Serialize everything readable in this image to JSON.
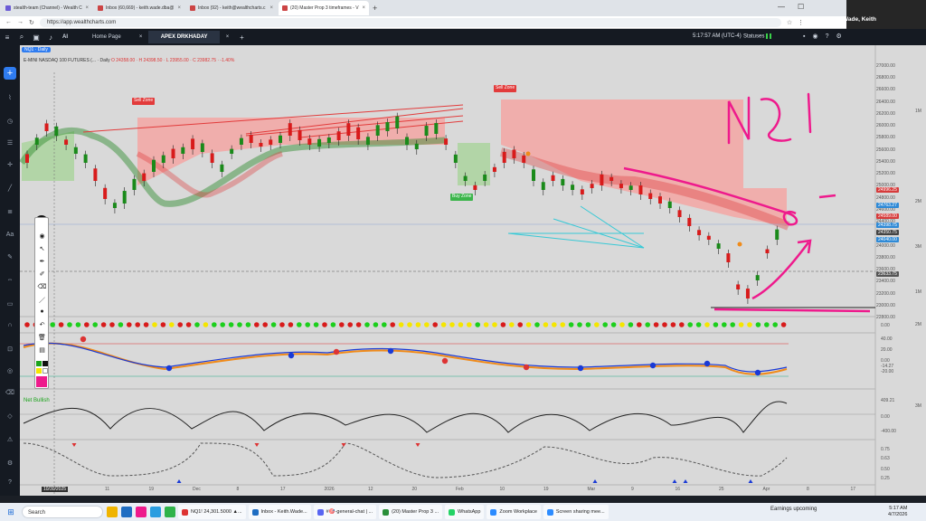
{
  "browser": {
    "tabs": [
      {
        "label": "stealth-team (Channel) - Wealth C",
        "active": false,
        "color": "#6a5bd6"
      },
      {
        "label": "Inbox (60,669) - keith.wade.dba@",
        "active": false,
        "color": "#d33"
      },
      {
        "label": "Inbox (92) - keith@wealthcharts.c",
        "active": false,
        "color": "#d33"
      },
      {
        "label": "(20) Master Prop 3 timeframes - V",
        "active": true,
        "color": "#d33"
      }
    ],
    "url": "https://app.wealthcharts.com",
    "new_tab_label": "+"
  },
  "zoom": {
    "participant_name": "Wade, Keith"
  },
  "app": {
    "tabs": [
      "Home Page",
      "APEX DRKHADAY"
    ],
    "ai_label": "AI",
    "time": "5:17:57 AM",
    "timezone": "(UTC-4)",
    "statuses_label": "Statuses"
  },
  "chart": {
    "symbol_tag": "NQ1 · Daily",
    "contract_text": "E-MINI NASDAQ 100 FUTURES (... · Daily",
    "ohlc_text": "O 24358.00 · H 24398.50 · L 23955.00 · C 23982.75 · -1.40%",
    "price_labels": [
      "27000.00",
      "26800.00",
      "26600.00",
      "26400.00",
      "26200.00",
      "26000.00",
      "25800.00",
      "25600.00",
      "25400.00",
      "25200.00",
      "25000.00",
      "24800.00",
      "24600.00",
      "24400.00",
      "24200.00",
      "24000.00",
      "23800.00",
      "23600.00",
      "23400.00",
      "23200.00",
      "23000.00",
      "22800.00"
    ],
    "price_tags": [
      {
        "text": "24996.25",
        "color": "#d63b3b"
      },
      {
        "text": "24763.27",
        "color": "#2f8ad6"
      },
      {
        "text": "24589.00",
        "color": "#d63b3b"
      },
      {
        "text": "24398.75",
        "color": "#2f8ad6"
      },
      {
        "text": "24350.75",
        "color": "#444444"
      },
      {
        "text": "24040.00",
        "color": "#2f8ad6"
      },
      {
        "text": "23633.75",
        "color": "#555555"
      }
    ],
    "right_markers": [
      "1M",
      "2M",
      "3M",
      "1M",
      "2M",
      "3M"
    ],
    "zones": [
      {
        "text": "Sell Zone",
        "color": "#e23b3b"
      },
      {
        "text": "Sell Zone",
        "color": "#e23b3b"
      },
      {
        "text": "Buy Zone",
        "color": "#3bb54a"
      }
    ],
    "handwriting": "NQ1",
    "date_labels": [
      "10/30/2025",
      "11",
      "19",
      "Dec",
      "8",
      "17",
      "2026",
      "12",
      "20",
      "Feb",
      "10",
      "19",
      "Mar",
      "9",
      "16",
      "25",
      "Apr",
      "8",
      "17"
    ],
    "indicator_labels": {
      "panel1_value": "0.00",
      "panel2_values": [
        "40.00",
        "20.00",
        "0.00",
        "-20.00",
        "-14.27"
      ],
      "panel3_values": [
        "409.21",
        "0.00",
        "-400.00"
      ],
      "panel4_values": [
        "0.75",
        "0.63",
        "0.50",
        "0.25"
      ],
      "net_bullish": "Net Bullish"
    }
  },
  "taskbar": {
    "search_placeholder": "Search",
    "buttons": [
      {
        "label": "NQ1! 24,301.5000 ▲...",
        "color": "#d33"
      },
      {
        "label": "Inbox - Keith.Wade...",
        "color": "#1f6dc2"
      },
      {
        "label": "#🎯-general-chat | ...",
        "color": "#5865f2"
      },
      {
        "label": "(20) Master Prop 3 ...",
        "color": "#2a8f3a"
      },
      {
        "label": "WhatsApp",
        "color": "#25d366"
      },
      {
        "label": "Zoom Workplace",
        "color": "#2d8cff"
      },
      {
        "label": "Screen sharing mee...",
        "color": "#2d8cff"
      }
    ],
    "earnings": "Earnings upcoming",
    "time": "5:17 AM",
    "date": "4/7/2026"
  }
}
